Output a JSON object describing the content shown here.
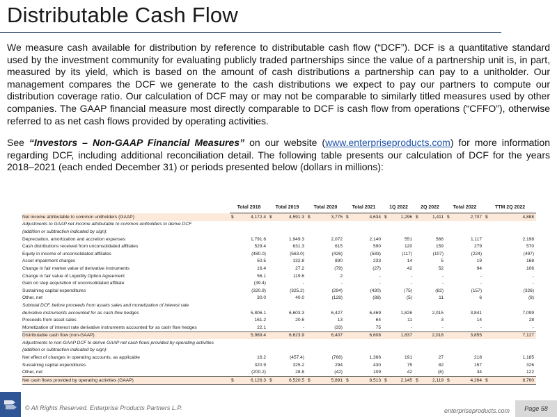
{
  "title": "Distributable Cash Flow",
  "paragraph1": "We measure cash available for distribution by reference to distributable cash flow (“DCF”).  DCF is a quantitative standard used by the investment community for evaluating publicly traded partnerships since the value of a partnership unit is, in part, measured by its yield, which is based on the amount of cash distributions a partnership can pay to a unitholder.  Our management compares the DCF we generate to the cash distributions we expect to pay our partners to compute our distribution coverage ratio.  Our calculation of DCF may or may not be comparable to similarly titled measures used by other companies. The GAAP financial measure most directly comparable to DCF is cash flow from operations (“CFFO”), otherwise referred to as net cash flows provided by operating activities.",
  "paragraph2": {
    "pre": "See ",
    "emph": "“Investors – Non-GAAP Financial Measures”",
    "mid": " on our website (",
    "link": "www.enterpriseproducts.com",
    "post": ") for more information regarding DCF, including additional reconciliation detail. The following table presents our calculation of DCF for the years 2018–2021 (each ended December 31) or periods presented below (dollars in millions):"
  },
  "table": {
    "headers": [
      "Total 2018",
      "Total 2019",
      "Total 2020",
      "Total 2021",
      "1Q 2022",
      "2Q 2022",
      "Total 2022",
      "TTM 2Q 2022"
    ],
    "rows": [
      {
        "label": "Net income attributable to common unitholders (GAAP)",
        "indent": 0,
        "style": "shade",
        "dollar": true,
        "values": [
          "4,172.4",
          "4,591.3",
          "3,775",
          "4,634",
          "1,296",
          "1,411",
          "2,707",
          "4,888"
        ]
      },
      {
        "label": "Adjustments to GAAP net income attributable to common unitholders to derive DCF",
        "indent": 0,
        "style": "ital",
        "values": [
          "",
          "",
          "",
          "",
          "",
          "",
          "",
          ""
        ]
      },
      {
        "label": "(addition or subtraction indicated by sign):",
        "indent": 1,
        "style": "ital",
        "values": [
          "",
          "",
          "",
          "",
          "",
          "",
          "",
          ""
        ]
      },
      {
        "label": "Depreciation, amortization and accretion expenses",
        "indent": 2,
        "values": [
          "1,791.6",
          "1,949.3",
          "2,072",
          "2,140",
          "551",
          "566",
          "1,117",
          "2,198"
        ]
      },
      {
        "label": "Cash distributions received from unconsolidated affiliates",
        "indent": 2,
        "values": [
          "529.4",
          "631.3",
          "615",
          "590",
          "120",
          "159",
          "279",
          "570"
        ]
      },
      {
        "label": "Equity in income of unconsolidated affiliates",
        "indent": 2,
        "values": [
          "(480.0)",
          "(563.0)",
          "(426)",
          "(583)",
          "(117)",
          "(107)",
          "(224)",
          "(497)"
        ]
      },
      {
        "label": "Asset impairment charges",
        "indent": 2,
        "values": [
          "50.5",
          "132.8",
          "890",
          "233",
          "14",
          "5",
          "19",
          "168"
        ]
      },
      {
        "label": "Change in fair market value of derivative instruments",
        "indent": 2,
        "values": [
          "16.4",
          "27.2",
          "(79)",
          "(27)",
          "42",
          "52",
          "94",
          "106"
        ]
      },
      {
        "label": "Change in fair value of Liquidity Option Agreement",
        "indent": 2,
        "values": [
          "56.1",
          "119.6",
          "2",
          "-",
          "-",
          "-",
          "-",
          "-"
        ]
      },
      {
        "label": "Gain on step acquisition of unconsolidated affiliate",
        "indent": 2,
        "values": [
          "(39.4)",
          "-",
          "-",
          "-",
          "-",
          "-",
          "-",
          "-"
        ]
      },
      {
        "label": "Sustaining capital expenditures",
        "indent": 2,
        "values": [
          "(320.9)",
          "(325.2)",
          "(294)",
          "(430)",
          "(75)",
          "(82)",
          "(157)",
          "(326)"
        ]
      },
      {
        "label": "Other, net",
        "indent": 2,
        "values": [
          "30.0",
          "40.0",
          "(128)",
          "(88)",
          "(5)",
          "11",
          "6",
          "(8)"
        ]
      },
      {
        "label": "Subtotal DCF, before proceeds from assets sales and monetization of interest rate",
        "indent": 0,
        "style": "ital",
        "values": [
          "",
          "",
          "",
          "",
          "",
          "",
          "",
          ""
        ]
      },
      {
        "label": "derivative instruments accounted for as cash flow hedges",
        "indent": 1,
        "style": "ital",
        "values": [
          "5,806.1",
          "6,603.3",
          "6,427",
          "6,469",
          "1,826",
          "2,015",
          "3,841",
          "7,099"
        ]
      },
      {
        "label": "Proceeds from asset sales",
        "indent": 2,
        "values": [
          "161.2",
          "20.6",
          "13",
          "64",
          "11",
          "3",
          "14",
          "28"
        ]
      },
      {
        "label": "Monetization of interest rate derivative instruments accounted for as cash flow hedges",
        "indent": 2,
        "values": [
          "22.1",
          "-",
          "(33)",
          "75",
          "-",
          "-",
          "-",
          "-"
        ]
      },
      {
        "label": "Distributable cash flow (non-GAAP)",
        "indent": 0,
        "style": "shade top",
        "values": [
          "5,989.4",
          "6,623.9",
          "6,407",
          "6,608",
          "1,837",
          "2,018",
          "3,855",
          "7,127"
        ]
      },
      {
        "label": "Adjustments to non-GAAP DCF to derive GAAP net cash flows provided by operating activities",
        "indent": 0,
        "style": "ital",
        "values": [
          "",
          "",
          "",
          "",
          "",
          "",
          "",
          ""
        ]
      },
      {
        "label": "(addition or subtraction indicated by sign):",
        "indent": 1,
        "style": "ital",
        "values": [
          "",
          "",
          "",
          "",
          "",
          "",
          "",
          ""
        ]
      },
      {
        "label": "Net effect of changes in operating accounts, as applicable",
        "indent": 2,
        "values": [
          "16.2",
          "(457.4)",
          "(768)",
          "1,366",
          "191",
          "27",
          "218",
          "1,185"
        ]
      },
      {
        "label": "Sustaining capital expenditures",
        "indent": 2,
        "values": [
          "320.9",
          "325.2",
          "294",
          "430",
          "75",
          "82",
          "157",
          "326"
        ]
      },
      {
        "label": "Other, net",
        "indent": 2,
        "values": [
          "(200.2)",
          "28.8",
          "(42)",
          "109",
          "42",
          "(8)",
          "34",
          "122"
        ]
      },
      {
        "label": "Net cash flows provided by operating activities (GAAP)",
        "indent": 0,
        "style": "net",
        "dollar": true,
        "values": [
          "6,126.3",
          "6,520.5",
          "5,891",
          "8,513",
          "2,145",
          "2,119",
          "4,264",
          "8,760"
        ]
      }
    ],
    "dollar_sign": "$"
  },
  "footer": {
    "copyright": "© All Rights Reserved. Enterprise Products Partners L.P.",
    "website": "enterpriseproducts.com",
    "page": "Page 58"
  },
  "colors": {
    "accent": "#2f5597",
    "shade": "#fde9d9"
  }
}
